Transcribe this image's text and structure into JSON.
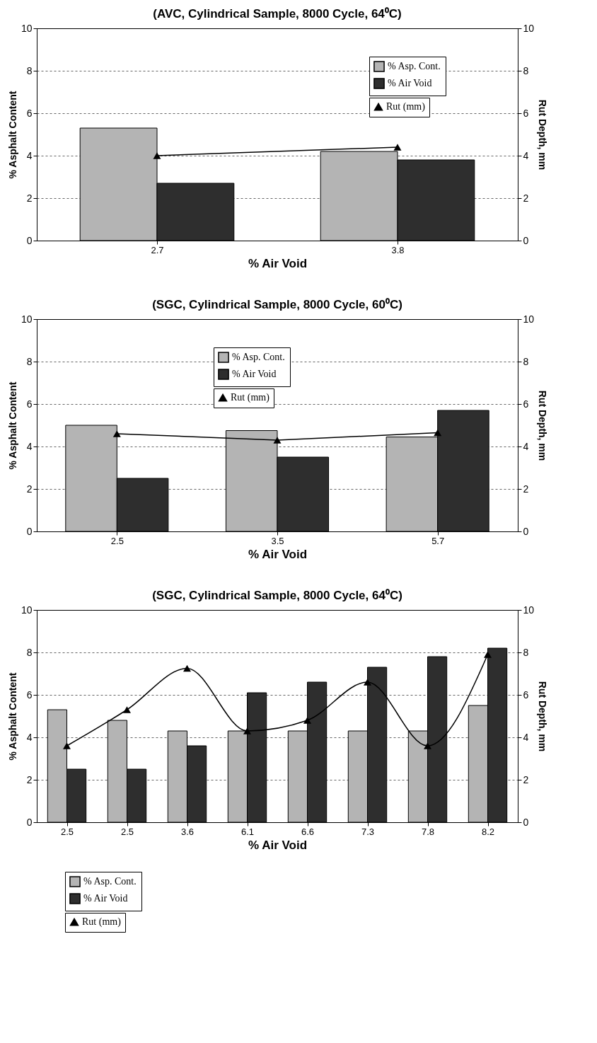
{
  "chart_data": [
    {
      "type": "bar",
      "title": "(AVC, Cylindrical Sample, 8000 Cycle, 64⁰C)",
      "xlabel": "% Air Void",
      "ylabel": "% Asphalt Content",
      "y2label": "Rut Depth, mm",
      "categories": [
        "2.7",
        "3.8"
      ],
      "series": [
        {
          "name": "% Asp. Cont.",
          "color": "#b4b4b4",
          "values": [
            5.3,
            4.2
          ]
        },
        {
          "name": "% Air Void",
          "color": "#2e2e2e",
          "values": [
            2.7,
            3.8
          ]
        },
        {
          "name": "Rut (mm)",
          "type": "line",
          "axis": "y2",
          "color": "#000000",
          "values": [
            4.0,
            4.4
          ]
        }
      ],
      "ylim": [
        0,
        10
      ],
      "yticks": [
        0,
        2,
        4,
        6,
        8,
        10
      ],
      "y2lim": [
        0,
        10
      ],
      "y2ticks": [
        0,
        2,
        4,
        6,
        8,
        10
      ],
      "grid": "y",
      "legend": "top right",
      "marker": "triangle",
      "line_style": "solid"
    },
    {
      "type": "bar",
      "title": "(SGC, Cylindrical Sample, 8000 Cycle, 60⁰C)",
      "xlabel": "% Air Void",
      "ylabel": "% Asphalt Content",
      "y2label": "Rut Depth, mm",
      "categories": [
        "2.5",
        "3.5",
        "5.7"
      ],
      "series": [
        {
          "name": "% Asp. Cont.",
          "color": "#b4b4b4",
          "values": [
            5.0,
            4.75,
            4.45
          ]
        },
        {
          "name": "% Air Void",
          "color": "#2e2e2e",
          "values": [
            2.5,
            3.5,
            5.7
          ]
        },
        {
          "name": "Rut (mm)",
          "type": "line",
          "axis": "y2",
          "color": "#000000",
          "values": [
            4.6,
            4.3,
            4.65
          ]
        }
      ],
      "ylim": [
        0,
        10
      ],
      "yticks": [
        0,
        2,
        4,
        6,
        8,
        10
      ],
      "y2lim": [
        0,
        10
      ],
      "y2ticks": [
        0,
        2,
        4,
        6,
        8,
        10
      ],
      "grid": "y",
      "legend": "top",
      "marker": "triangle",
      "line_style": "solid"
    },
    {
      "type": "bar",
      "title": "(SGC, Cylindrical Sample, 8000 Cycle, 64⁰C)",
      "xlabel": "% Air Void",
      "ylabel": "% Asphalt Content",
      "y2label": "Rut Depth, mm",
      "categories": [
        "2.5",
        "2.5",
        "3.6",
        "6.1",
        "6.6",
        "7.3",
        "7.8",
        "8.2"
      ],
      "series": [
        {
          "name": "% Asp. Cont.",
          "color": "#b4b4b4",
          "values": [
            5.3,
            4.8,
            4.3,
            4.3,
            4.3,
            4.3,
            4.3,
            5.5
          ]
        },
        {
          "name": "% Air Void",
          "color": "#2e2e2e",
          "values": [
            2.5,
            2.5,
            3.6,
            6.1,
            6.6,
            7.3,
            7.8,
            8.2
          ]
        },
        {
          "name": "Rut (mm)",
          "type": "line",
          "axis": "y2",
          "color": "#000000",
          "values": [
            3.6,
            5.3,
            7.25,
            4.3,
            4.8,
            6.6,
            3.6,
            7.9
          ]
        }
      ],
      "ylim": [
        0,
        10
      ],
      "yticks": [
        0,
        2,
        4,
        6,
        8,
        10
      ],
      "y2lim": [
        0,
        10
      ],
      "y2ticks": [
        0,
        2,
        4,
        6,
        8,
        10
      ],
      "grid": "y",
      "legend": "bottom left",
      "marker": "triangle",
      "line_style": "solid"
    }
  ]
}
